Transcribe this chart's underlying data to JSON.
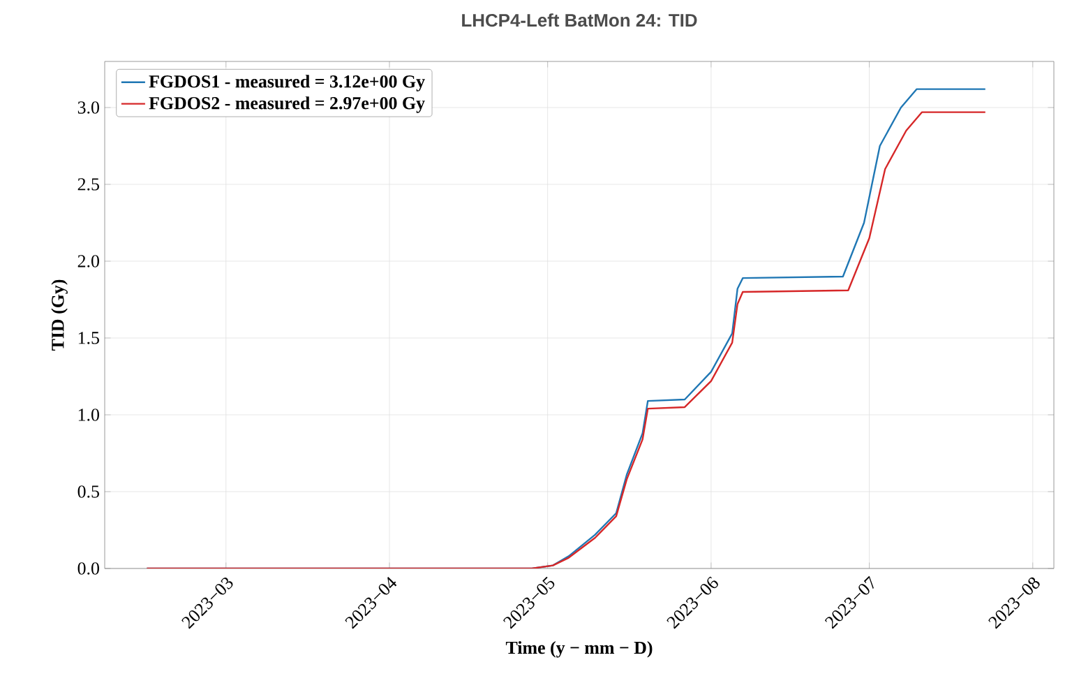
{
  "chart_data": {
    "type": "line",
    "title": "LHCP4-Left BatMon 24: TID",
    "xlabel": "Time (y − mm − D)",
    "ylabel": "TID (Gy)",
    "xlim": [
      "2023-02-06",
      "2023-08-05"
    ],
    "xticks": [
      {
        "value": "2023-03-01",
        "label": "2023−03"
      },
      {
        "value": "2023-04-01",
        "label": "2023−04"
      },
      {
        "value": "2023-05-01",
        "label": "2023−05"
      },
      {
        "value": "2023-06-01",
        "label": "2023−06"
      },
      {
        "value": "2023-07-01",
        "label": "2023−07"
      },
      {
        "value": "2023-08-01",
        "label": "2023−08"
      }
    ],
    "ylim": [
      0,
      3.3
    ],
    "yticks": [
      {
        "value": 0,
        "label": "0.0"
      },
      {
        "value": 0.5,
        "label": "0.5"
      },
      {
        "value": 1,
        "label": "1.0"
      },
      {
        "value": 1.5,
        "label": "1.5"
      },
      {
        "value": 2,
        "label": "2.0"
      },
      {
        "value": 2.5,
        "label": "2.5"
      },
      {
        "value": 3,
        "label": "3.0"
      }
    ],
    "grid": true,
    "legend": "top left",
    "series": [
      {
        "name": "FGDOS1 - measured = 3.12e+00 Gy",
        "color": "#1f77b4",
        "x": [
          "2023-02-14",
          "2023-04-28",
          "2023-05-02",
          "2023-05-05",
          "2023-05-10",
          "2023-05-14",
          "2023-05-16",
          "2023-05-19",
          "2023-05-20",
          "2023-05-27",
          "2023-06-01",
          "2023-06-05",
          "2023-06-06",
          "2023-06-07",
          "2023-06-26",
          "2023-06-30",
          "2023-07-03",
          "2023-07-07",
          "2023-07-10",
          "2023-07-23"
        ],
        "values": [
          0,
          0,
          0.02,
          0.08,
          0.22,
          0.36,
          0.61,
          0.88,
          1.09,
          1.1,
          1.28,
          1.53,
          1.82,
          1.89,
          1.9,
          2.25,
          2.75,
          3.0,
          3.12,
          3.12
        ]
      },
      {
        "name": "FGDOS2 - measured = 2.97e+00 Gy",
        "color": "#d62728",
        "x": [
          "2023-02-14",
          "2023-04-28",
          "2023-05-02",
          "2023-05-05",
          "2023-05-10",
          "2023-05-14",
          "2023-05-16",
          "2023-05-19",
          "2023-05-20",
          "2023-05-27",
          "2023-06-01",
          "2023-06-05",
          "2023-06-06",
          "2023-06-07",
          "2023-06-27",
          "2023-07-01",
          "2023-07-04",
          "2023-07-08",
          "2023-07-11",
          "2023-07-23"
        ],
        "values": [
          0,
          0,
          0.02,
          0.07,
          0.2,
          0.34,
          0.58,
          0.84,
          1.04,
          1.05,
          1.22,
          1.47,
          1.72,
          1.8,
          1.81,
          2.15,
          2.6,
          2.85,
          2.97,
          2.97
        ]
      }
    ]
  }
}
